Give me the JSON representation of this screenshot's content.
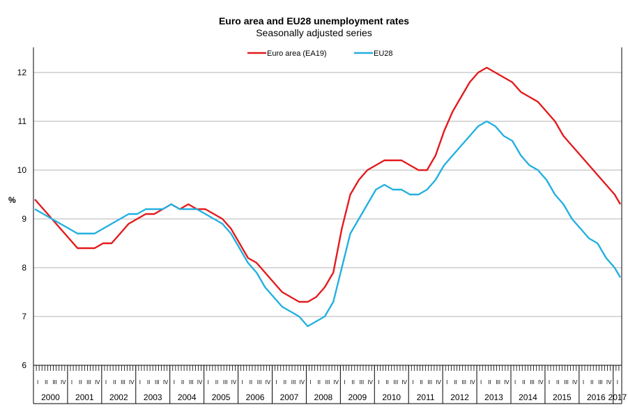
{
  "chart_data": {
    "type": "line",
    "title": "Euro area and EU28 unemployment rates",
    "subtitle": "Seasonally adjusted series",
    "ylabel": "%",
    "xlabel": "",
    "ylim": [
      6,
      12.5
    ],
    "yticks": [
      6,
      7,
      8,
      9,
      10,
      11,
      12
    ],
    "grid": "horizontal",
    "legend": "top-center",
    "x_start": "2000-01",
    "x_end": "2017-03",
    "x_frequency": "monthly",
    "year_labels": [
      "2000",
      "2001",
      "2002",
      "2003",
      "2004",
      "2005",
      "2006",
      "2007",
      "2008",
      "2009",
      "2010",
      "2011",
      "2012",
      "2013",
      "2014",
      "2015",
      "2016",
      "2017"
    ],
    "quarter_labels": [
      "I",
      "II",
      "III",
      "IV"
    ],
    "series": [
      {
        "name": "Euro area (EA19)",
        "color": "#e41a1c",
        "points": [
          [
            "2000-01",
            9.4
          ],
          [
            "2000-04",
            9.2
          ],
          [
            "2000-07",
            9.0
          ],
          [
            "2000-10",
            8.8
          ],
          [
            "2001-01",
            8.6
          ],
          [
            "2001-04",
            8.4
          ],
          [
            "2001-07",
            8.4
          ],
          [
            "2001-10",
            8.4
          ],
          [
            "2002-01",
            8.5
          ],
          [
            "2002-04",
            8.5
          ],
          [
            "2002-07",
            8.7
          ],
          [
            "2002-10",
            8.9
          ],
          [
            "2003-01",
            9.0
          ],
          [
            "2003-04",
            9.1
          ],
          [
            "2003-07",
            9.1
          ],
          [
            "2003-10",
            9.2
          ],
          [
            "2004-01",
            9.3
          ],
          [
            "2004-04",
            9.2
          ],
          [
            "2004-07",
            9.3
          ],
          [
            "2004-10",
            9.2
          ],
          [
            "2005-01",
            9.2
          ],
          [
            "2005-04",
            9.1
          ],
          [
            "2005-07",
            9.0
          ],
          [
            "2005-10",
            8.8
          ],
          [
            "2006-01",
            8.5
          ],
          [
            "2006-04",
            8.2
          ],
          [
            "2006-07",
            8.1
          ],
          [
            "2006-10",
            7.9
          ],
          [
            "2007-01",
            7.7
          ],
          [
            "2007-04",
            7.5
          ],
          [
            "2007-07",
            7.4
          ],
          [
            "2007-10",
            7.3
          ],
          [
            "2008-01",
            7.3
          ],
          [
            "2008-04",
            7.4
          ],
          [
            "2008-07",
            7.6
          ],
          [
            "2008-10",
            7.9
          ],
          [
            "2009-01",
            8.8
          ],
          [
            "2009-04",
            9.5
          ],
          [
            "2009-07",
            9.8
          ],
          [
            "2009-10",
            10.0
          ],
          [
            "2010-01",
            10.1
          ],
          [
            "2010-04",
            10.2
          ],
          [
            "2010-07",
            10.2
          ],
          [
            "2010-10",
            10.2
          ],
          [
            "2011-01",
            10.1
          ],
          [
            "2011-04",
            10.0
          ],
          [
            "2011-07",
            10.0
          ],
          [
            "2011-10",
            10.3
          ],
          [
            "2012-01",
            10.8
          ],
          [
            "2012-04",
            11.2
          ],
          [
            "2012-07",
            11.5
          ],
          [
            "2012-10",
            11.8
          ],
          [
            "2013-01",
            12.0
          ],
          [
            "2013-04",
            12.1
          ],
          [
            "2013-07",
            12.0
          ],
          [
            "2013-10",
            11.9
          ],
          [
            "2014-01",
            11.8
          ],
          [
            "2014-04",
            11.6
          ],
          [
            "2014-07",
            11.5
          ],
          [
            "2014-10",
            11.4
          ],
          [
            "2015-01",
            11.2
          ],
          [
            "2015-04",
            11.0
          ],
          [
            "2015-07",
            10.7
          ],
          [
            "2015-10",
            10.5
          ],
          [
            "2016-01",
            10.3
          ],
          [
            "2016-04",
            10.1
          ],
          [
            "2016-07",
            9.9
          ],
          [
            "2016-10",
            9.7
          ],
          [
            "2017-01",
            9.5
          ],
          [
            "2017-03",
            9.3
          ]
        ]
      },
      {
        "name": "EU28",
        "color": "#22b0e0",
        "points": [
          [
            "2000-01",
            9.2
          ],
          [
            "2000-04",
            9.1
          ],
          [
            "2000-07",
            9.0
          ],
          [
            "2000-10",
            8.9
          ],
          [
            "2001-01",
            8.8
          ],
          [
            "2001-04",
            8.7
          ],
          [
            "2001-07",
            8.7
          ],
          [
            "2001-10",
            8.7
          ],
          [
            "2002-01",
            8.8
          ],
          [
            "2002-04",
            8.9
          ],
          [
            "2002-07",
            9.0
          ],
          [
            "2002-10",
            9.1
          ],
          [
            "2003-01",
            9.1
          ],
          [
            "2003-04",
            9.2
          ],
          [
            "2003-07",
            9.2
          ],
          [
            "2003-10",
            9.2
          ],
          [
            "2004-01",
            9.3
          ],
          [
            "2004-04",
            9.2
          ],
          [
            "2004-07",
            9.2
          ],
          [
            "2004-10",
            9.2
          ],
          [
            "2005-01",
            9.1
          ],
          [
            "2005-04",
            9.0
          ],
          [
            "2005-07",
            8.9
          ],
          [
            "2005-10",
            8.7
          ],
          [
            "2006-01",
            8.4
          ],
          [
            "2006-04",
            8.1
          ],
          [
            "2006-07",
            7.9
          ],
          [
            "2006-10",
            7.6
          ],
          [
            "2007-01",
            7.4
          ],
          [
            "2007-04",
            7.2
          ],
          [
            "2007-07",
            7.1
          ],
          [
            "2007-10",
            7.0
          ],
          [
            "2008-01",
            6.8
          ],
          [
            "2008-04",
            6.9
          ],
          [
            "2008-07",
            7.0
          ],
          [
            "2008-10",
            7.3
          ],
          [
            "2009-01",
            8.0
          ],
          [
            "2009-04",
            8.7
          ],
          [
            "2009-07",
            9.0
          ],
          [
            "2009-10",
            9.3
          ],
          [
            "2010-01",
            9.6
          ],
          [
            "2010-04",
            9.7
          ],
          [
            "2010-07",
            9.6
          ],
          [
            "2010-10",
            9.6
          ],
          [
            "2011-01",
            9.5
          ],
          [
            "2011-04",
            9.5
          ],
          [
            "2011-07",
            9.6
          ],
          [
            "2011-10",
            9.8
          ],
          [
            "2012-01",
            10.1
          ],
          [
            "2012-04",
            10.3
          ],
          [
            "2012-07",
            10.5
          ],
          [
            "2012-10",
            10.7
          ],
          [
            "2013-01",
            10.9
          ],
          [
            "2013-04",
            11.0
          ],
          [
            "2013-07",
            10.9
          ],
          [
            "2013-10",
            10.7
          ],
          [
            "2014-01",
            10.6
          ],
          [
            "2014-04",
            10.3
          ],
          [
            "2014-07",
            10.1
          ],
          [
            "2014-10",
            10.0
          ],
          [
            "2015-01",
            9.8
          ],
          [
            "2015-04",
            9.5
          ],
          [
            "2015-07",
            9.3
          ],
          [
            "2015-10",
            9.0
          ],
          [
            "2016-01",
            8.8
          ],
          [
            "2016-04",
            8.6
          ],
          [
            "2016-07",
            8.5
          ],
          [
            "2016-10",
            8.2
          ],
          [
            "2017-01",
            8.0
          ],
          [
            "2017-03",
            7.8
          ]
        ]
      }
    ]
  }
}
